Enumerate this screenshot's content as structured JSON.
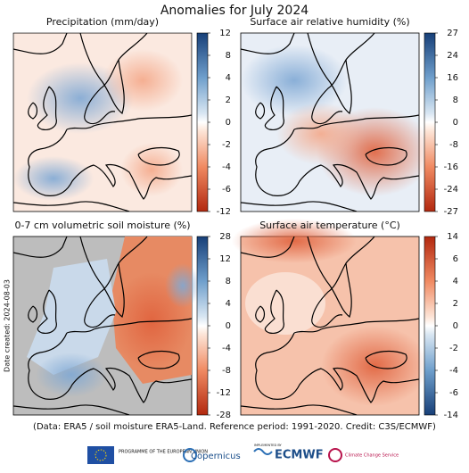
{
  "title": "Anomalies for July 2024",
  "panels": [
    {
      "title": "Precipitation (mm/day)",
      "ticks": [
        12,
        8,
        4,
        2,
        0,
        -2,
        -4,
        -6,
        -12
      ]
    },
    {
      "title": "Surface air relative humidity (%)",
      "ticks": [
        27,
        24,
        16,
        8,
        0,
        -8,
        -16,
        -24,
        -27
      ]
    },
    {
      "title": "0-7 cm volumetric soil moisture (%)",
      "ticks": [
        28,
        12,
        8,
        4,
        0,
        -4,
        -8,
        -12,
        -28
      ]
    },
    {
      "title": "Surface air temperature (°C)",
      "ticks": [
        14,
        6,
        4,
        2,
        0,
        -2,
        -4,
        -6,
        -14
      ]
    }
  ],
  "date_created": "Date created: 2024-08-03",
  "footnote": "(Data: ERA5 / soil moisture ERA5-Land.  Reference period: 1991-2020.  Credit: C3S/ECMWF)",
  "logos": {
    "eu": "PROGRAMME OF THE EUROPEAN UNION",
    "copernicus": "Copernicus",
    "implemented_by": "IMPLEMENTED BY",
    "ecmwf": "ECMWF",
    "c3s": "Climate Change Service"
  }
}
